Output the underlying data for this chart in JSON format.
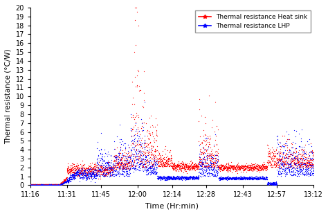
{
  "xlabel": "Time (Hr:min)",
  "ylabel": "Thermal resistance (°C/W)",
  "ylim": [
    0,
    20
  ],
  "yticks": [
    0,
    1,
    2,
    3,
    4,
    5,
    6,
    7,
    8,
    9,
    10,
    11,
    12,
    13,
    14,
    15,
    16,
    17,
    18,
    19,
    20
  ],
  "xtick_labels": [
    "11:16",
    "11:31",
    "11:45",
    "12:00",
    "12:14",
    "12:28",
    "12:43",
    "12:57",
    "13:12"
  ],
  "legend_labels": [
    "Thermal resistance Heat sink",
    "Thermal resistance LHP"
  ],
  "red_color": "#ff0000",
  "blue_color": "#0000ff",
  "background_color": "#ffffff",
  "seed": 42,
  "n_points": 3000
}
